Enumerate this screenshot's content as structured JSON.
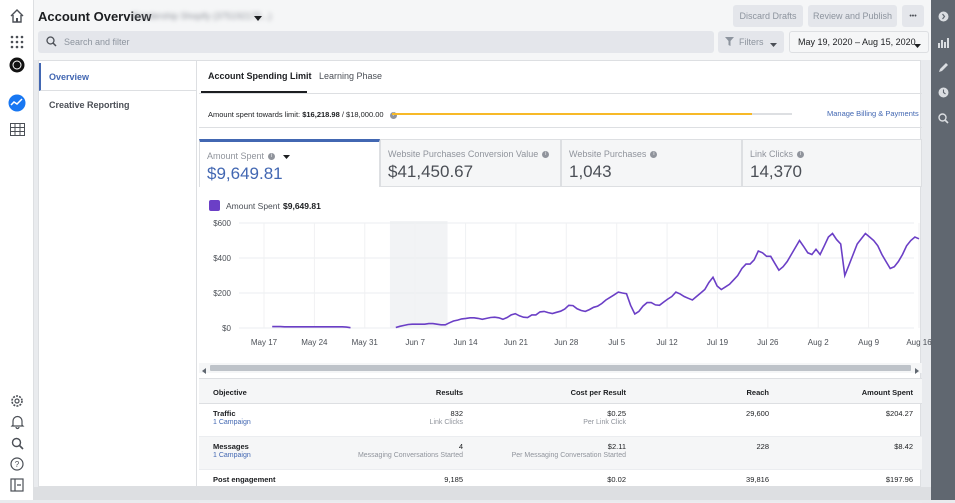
{
  "header": {
    "title": "Account Overview",
    "account_name": "Readership Shopify (375192175...)",
    "discard_label": "Discard Drafts",
    "review_label": "Review and Publish",
    "more_label": "•••",
    "search_placeholder": "Search and filter",
    "filters_label": "Filters",
    "date_range": "May 19, 2020 – Aug 15, 2020"
  },
  "subnav": {
    "items": [
      {
        "label": "Overview"
      },
      {
        "label": "Creative Reporting"
      }
    ]
  },
  "tabs": [
    {
      "label": "Account Spending Limit"
    },
    {
      "label": "Learning Phase"
    }
  ],
  "spending_limit": {
    "prefix": "Amount spent towards limit:",
    "spent": "$16,218.98",
    "limit_text": "/ $18,000.00",
    "progress": 0.9,
    "manage_link": "Manage Billing & Payments"
  },
  "metrics": [
    {
      "label": "Amount Spent",
      "value": "$9,649.81"
    },
    {
      "label": "Website Purchases Conversion Value",
      "value": "$41,450.67"
    },
    {
      "label": "Website Purchases",
      "value": "1,043"
    },
    {
      "label": "Link Clicks",
      "value": "14,370"
    }
  ],
  "chart_data": {
    "type": "line",
    "legend": {
      "label": "Amount Spent",
      "value": "$9,649.81"
    },
    "series_color": "#6b3fc6",
    "y_ticks": [
      "$600",
      "$400",
      "$200",
      "$0"
    ],
    "ylim": [
      0,
      600
    ],
    "x_ticks": [
      "May 17",
      "May 24",
      "May 31",
      "Jun 7",
      "Jun 14",
      "Jun 21",
      "Jun 28",
      "Jul 5",
      "Jul 12",
      "Jul 19",
      "Jul 26",
      "Aug 2",
      "Aug 9",
      "Aug 16"
    ],
    "start_label_day": "May 17",
    "highlight_band": {
      "from_day": 17.5,
      "to_day": 25.5
    },
    "series": [
      {
        "values": [
          null,
          null,
          8,
          8,
          8,
          7,
          7,
          7,
          7,
          7,
          7,
          7,
          7,
          7,
          7,
          7,
          7,
          7,
          7,
          7,
          5,
          2,
          null,
          null,
          null,
          null,
          null,
          null,
          null,
          null,
          null,
          null,
          3,
          10,
          15,
          20,
          22,
          22,
          22,
          22,
          25,
          25,
          22,
          18,
          18,
          30,
          40,
          45,
          52,
          55,
          58,
          58,
          55,
          50,
          55,
          60,
          62,
          58,
          50,
          60,
          75,
          82,
          70,
          62,
          60,
          75,
          75,
          92,
          95,
          88,
          83,
          90,
          96,
          108,
          130,
          128,
          110,
          100,
          95,
          105,
          118,
          125,
          140,
          160,
          175,
          190,
          205,
          200,
          196,
          130,
          80,
          95,
          125,
          145,
          145,
          132,
          130,
          148,
          165,
          180,
          205,
          195,
          180,
          170,
          160,
          180,
          200,
          220,
          260,
          290,
          240,
          220,
          235,
          250,
          275,
          300,
          340,
          365,
          365,
          390,
          440,
          430,
          410,
          410,
          370,
          330,
          350,
          380,
          420,
          460,
          500,
          465,
          430,
          420,
          450,
          420,
          470,
          520,
          540,
          505,
          480,
          300,
          360,
          420,
          480,
          510,
          540,
          520,
          500,
          470,
          420,
          380,
          340,
          350,
          380,
          420,
          470,
          500,
          520,
          510
        ]
      }
    ]
  },
  "table": {
    "headers": [
      "Objective",
      "Results",
      "Cost per Result",
      "Reach",
      "Amount Spent"
    ],
    "rows": [
      {
        "objective": "Traffic",
        "campaigns": "1 Campaign",
        "results": "832",
        "results_sub": "Link Clicks",
        "cpr": "$0.25",
        "cpr_sub": "Per Link Click",
        "reach": "29,600",
        "spent": "$204.27"
      },
      {
        "objective": "Messages",
        "campaigns": "1 Campaign",
        "results": "4",
        "results_sub": "Messaging Conversations Started",
        "cpr": "$2.11",
        "cpr_sub": "Per Messaging Conversation Started",
        "reach": "228",
        "spent": "$8.42"
      },
      {
        "objective": "Post engagement",
        "campaigns": "",
        "results": "9,185",
        "results_sub": "",
        "cpr": "$0.02",
        "cpr_sub": "",
        "reach": "39,816",
        "spent": "$197.96"
      }
    ]
  },
  "icons": {
    "left_rail": [
      "home-icon",
      "apps-grid-icon",
      "account-avatar-icon",
      "ads-manager-icon",
      "table-icon",
      "settings-icon",
      "notifications-icon",
      "search-icon",
      "help-icon",
      "panel-icon"
    ],
    "right_rail": [
      "info-icon",
      "bar-chart-icon",
      "pencil-icon",
      "history-icon",
      "zoom-icon"
    ]
  }
}
